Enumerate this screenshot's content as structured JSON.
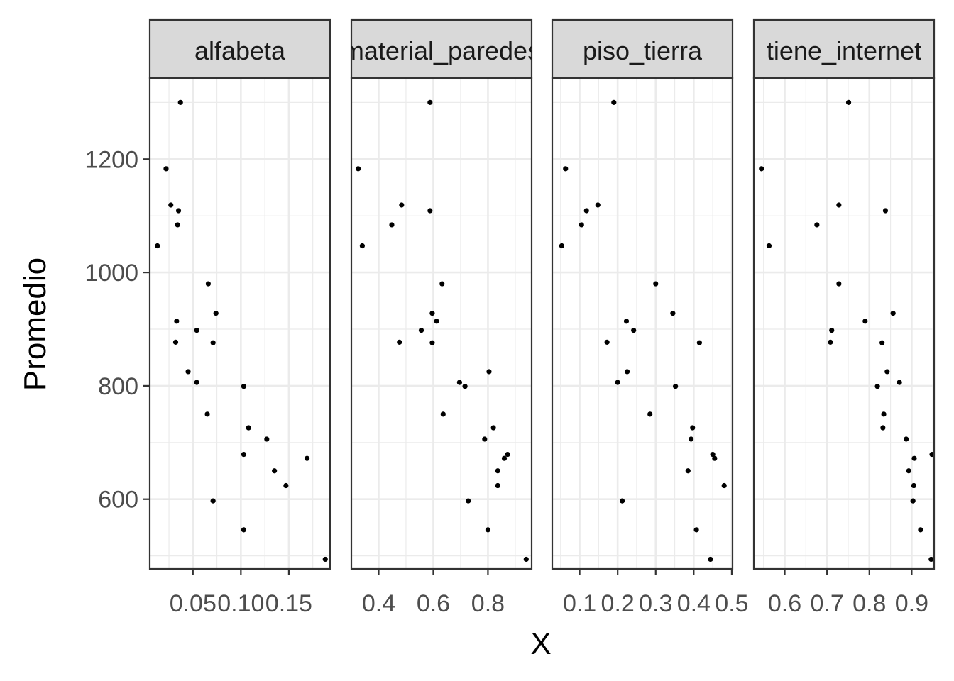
{
  "chart_data": {
    "type": "scatter",
    "facet_layout": "single row of 4 panels, shared y axis",
    "xlabel": "X",
    "ylabel": "Promedio",
    "theme": "ggplot2 theme_bw",
    "grid": true,
    "point_color": "#000000",
    "strip_fill": "#d9d9d9",
    "grid_color": "#ebebeb",
    "y_ticks": [
      600,
      800,
      1000,
      1200
    ],
    "y_tick_labels": [
      "600",
      "800",
      "1000",
      "1200"
    ],
    "ylim": [
      477,
      1343
    ],
    "facets": [
      {
        "strip": "alfabeta",
        "xlim": [
          0.005,
          0.193
        ],
        "x_ticks": [
          0.05,
          0.1,
          0.15
        ],
        "x_tick_labels": [
          "0.05",
          "0.10",
          "0.15"
        ],
        "points": [
          {
            "x": 0.037,
            "y": 1300
          },
          {
            "x": 0.022,
            "y": 1183
          },
          {
            "x": 0.027,
            "y": 1119
          },
          {
            "x": 0.035,
            "y": 1109
          },
          {
            "x": 0.034,
            "y": 1084
          },
          {
            "x": 0.013,
            "y": 1047
          },
          {
            "x": 0.066,
            "y": 980
          },
          {
            "x": 0.074,
            "y": 928
          },
          {
            "x": 0.033,
            "y": 914
          },
          {
            "x": 0.054,
            "y": 898
          },
          {
            "x": 0.032,
            "y": 877
          },
          {
            "x": 0.071,
            "y": 876
          },
          {
            "x": 0.045,
            "y": 825
          },
          {
            "x": 0.054,
            "y": 806
          },
          {
            "x": 0.103,
            "y": 799
          },
          {
            "x": 0.065,
            "y": 750
          },
          {
            "x": 0.108,
            "y": 726
          },
          {
            "x": 0.127,
            "y": 706
          },
          {
            "x": 0.103,
            "y": 679
          },
          {
            "x": 0.169,
            "y": 672
          },
          {
            "x": 0.135,
            "y": 650
          },
          {
            "x": 0.147,
            "y": 624
          },
          {
            "x": 0.071,
            "y": 597
          },
          {
            "x": 0.103,
            "y": 546
          },
          {
            "x": 0.188,
            "y": 494
          }
        ]
      },
      {
        "strip": "material_paredes",
        "xlim": [
          0.3,
          0.96
        ],
        "x_ticks": [
          0.4,
          0.6,
          0.8
        ],
        "x_tick_labels": [
          "0.4",
          "0.6",
          "0.8"
        ],
        "points": [
          {
            "x": 0.588,
            "y": 1300
          },
          {
            "x": 0.325,
            "y": 1183
          },
          {
            "x": 0.484,
            "y": 1119
          },
          {
            "x": 0.588,
            "y": 1109
          },
          {
            "x": 0.448,
            "y": 1084
          },
          {
            "x": 0.34,
            "y": 1047
          },
          {
            "x": 0.632,
            "y": 980
          },
          {
            "x": 0.596,
            "y": 928
          },
          {
            "x": 0.612,
            "y": 914
          },
          {
            "x": 0.556,
            "y": 898
          },
          {
            "x": 0.476,
            "y": 877
          },
          {
            "x": 0.596,
            "y": 876
          },
          {
            "x": 0.804,
            "y": 825
          },
          {
            "x": 0.696,
            "y": 806
          },
          {
            "x": 0.716,
            "y": 799
          },
          {
            "x": 0.636,
            "y": 750
          },
          {
            "x": 0.82,
            "y": 726
          },
          {
            "x": 0.788,
            "y": 706
          },
          {
            "x": 0.872,
            "y": 679
          },
          {
            "x": 0.86,
            "y": 672
          },
          {
            "x": 0.836,
            "y": 650
          },
          {
            "x": 0.836,
            "y": 624
          },
          {
            "x": 0.728,
            "y": 597
          },
          {
            "x": 0.8,
            "y": 546
          },
          {
            "x": 0.94,
            "y": 494
          }
        ]
      },
      {
        "strip": "piso_tierra",
        "xlim": [
          0.028,
          0.502
        ],
        "x_ticks": [
          0.1,
          0.2,
          0.3,
          0.4,
          0.5
        ],
        "x_tick_labels": [
          "0.1",
          "0.2",
          "0.3",
          "0.4",
          "0.5"
        ],
        "points": [
          {
            "x": 0.19,
            "y": 1300
          },
          {
            "x": 0.063,
            "y": 1183
          },
          {
            "x": 0.148,
            "y": 1119
          },
          {
            "x": 0.118,
            "y": 1109
          },
          {
            "x": 0.105,
            "y": 1084
          },
          {
            "x": 0.053,
            "y": 1047
          },
          {
            "x": 0.3,
            "y": 980
          },
          {
            "x": 0.345,
            "y": 928
          },
          {
            "x": 0.223,
            "y": 914
          },
          {
            "x": 0.242,
            "y": 898
          },
          {
            "x": 0.172,
            "y": 877
          },
          {
            "x": 0.415,
            "y": 876
          },
          {
            "x": 0.225,
            "y": 825
          },
          {
            "x": 0.2,
            "y": 806
          },
          {
            "x": 0.352,
            "y": 799
          },
          {
            "x": 0.285,
            "y": 750
          },
          {
            "x": 0.397,
            "y": 726
          },
          {
            "x": 0.393,
            "y": 706
          },
          {
            "x": 0.45,
            "y": 679
          },
          {
            "x": 0.455,
            "y": 672
          },
          {
            "x": 0.385,
            "y": 650
          },
          {
            "x": 0.48,
            "y": 624
          },
          {
            "x": 0.212,
            "y": 597
          },
          {
            "x": 0.407,
            "y": 546
          },
          {
            "x": 0.444,
            "y": 494
          }
        ]
      },
      {
        "strip": "tiene_internet",
        "xlim": [
          0.527,
          0.953
        ],
        "x_ticks": [
          0.6,
          0.7,
          0.8,
          0.9
        ],
        "x_tick_labels": [
          "0.6",
          "0.7",
          "0.8",
          "0.9"
        ],
        "points": [
          {
            "x": 0.751,
            "y": 1300
          },
          {
            "x": 0.545,
            "y": 1183
          },
          {
            "x": 0.728,
            "y": 1119
          },
          {
            "x": 0.838,
            "y": 1109
          },
          {
            "x": 0.676,
            "y": 1084
          },
          {
            "x": 0.563,
            "y": 1047
          },
          {
            "x": 0.728,
            "y": 980
          },
          {
            "x": 0.856,
            "y": 928
          },
          {
            "x": 0.79,
            "y": 914
          },
          {
            "x": 0.711,
            "y": 898
          },
          {
            "x": 0.708,
            "y": 877
          },
          {
            "x": 0.83,
            "y": 876
          },
          {
            "x": 0.842,
            "y": 825
          },
          {
            "x": 0.871,
            "y": 806
          },
          {
            "x": 0.819,
            "y": 799
          },
          {
            "x": 0.834,
            "y": 750
          },
          {
            "x": 0.832,
            "y": 726
          },
          {
            "x": 0.887,
            "y": 706
          },
          {
            "x": 0.948,
            "y": 679
          },
          {
            "x": 0.906,
            "y": 672
          },
          {
            "x": 0.893,
            "y": 650
          },
          {
            "x": 0.905,
            "y": 624
          },
          {
            "x": 0.903,
            "y": 597
          },
          {
            "x": 0.921,
            "y": 546
          },
          {
            "x": 0.946,
            "y": 494
          }
        ]
      }
    ]
  }
}
